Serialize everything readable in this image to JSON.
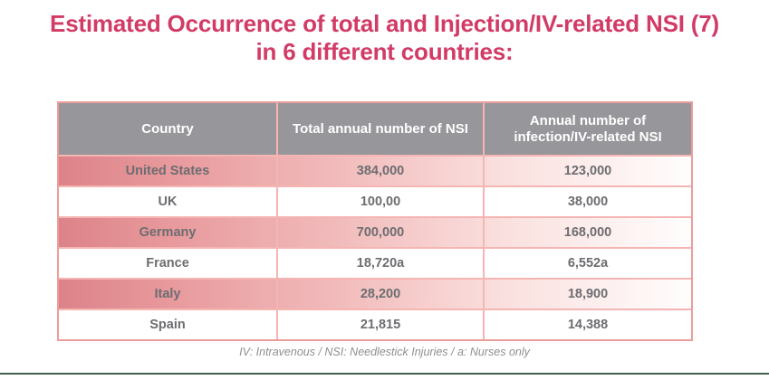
{
  "page": {
    "title_line1": "Estimated Occurrence of total and Injection/IV-related NSI (7)",
    "title_line2": "in 6 different countries:",
    "footnote": "IV: Intravenous / NSI: Needlestick Injuries / a: Nurses only"
  },
  "table": {
    "headers": {
      "country": "Country",
      "total": "Total annual number of NSI",
      "iv": "Annual number of\ninfection/IV-related NSI"
    },
    "rows": [
      {
        "country": "United States",
        "total": "384,000",
        "iv": "123,000"
      },
      {
        "country": "UK",
        "total": "100,00",
        "iv": "38,000"
      },
      {
        "country": "Germany",
        "total": "700,000",
        "iv": "168,000"
      },
      {
        "country": "France",
        "total": "18,720a",
        "iv": "6,552a"
      },
      {
        "country": "Italy",
        "total": "28,200",
        "iv": "18,900"
      },
      {
        "country": "Spain",
        "total": "21,815",
        "iv": "14,388"
      }
    ]
  },
  "chart_data": {
    "type": "table",
    "title": "Estimated Occurrence of total and Injection/IV-related NSI (7) in 6 different countries:",
    "columns": [
      "Country",
      "Total annual number of NSI",
      "Annual number of infection/IV-related NSI"
    ],
    "categories": [
      "United States",
      "UK",
      "Germany",
      "France",
      "Italy",
      "Spain"
    ],
    "series": [
      {
        "name": "Total annual number of NSI",
        "values": [
          "384,000",
          "100,00",
          "700,000",
          "18,720a",
          "28,200",
          "21,815"
        ]
      },
      {
        "name": "Annual number of infection/IV-related NSI",
        "values": [
          "123,000",
          "38,000",
          "168,000",
          "6,552a",
          "18,900",
          "14,388"
        ]
      }
    ],
    "footnote": "IV: Intravenous / NSI: Needlestick Injuries / a: Nurses only"
  },
  "colors": {
    "title_text": "#d23b66",
    "header_bg": "#97979b",
    "header_text": "#ffffff",
    "row_text": "#6d6d71",
    "outer_border": "#ec9d9b",
    "inner_border": "#f5b5b3",
    "pink_row_gradient_start": "#dc8389",
    "pink_row_gradient_end": "#fffdfd",
    "footnote_text": "#8f8f93",
    "bottom_rule": "#41604e"
  }
}
